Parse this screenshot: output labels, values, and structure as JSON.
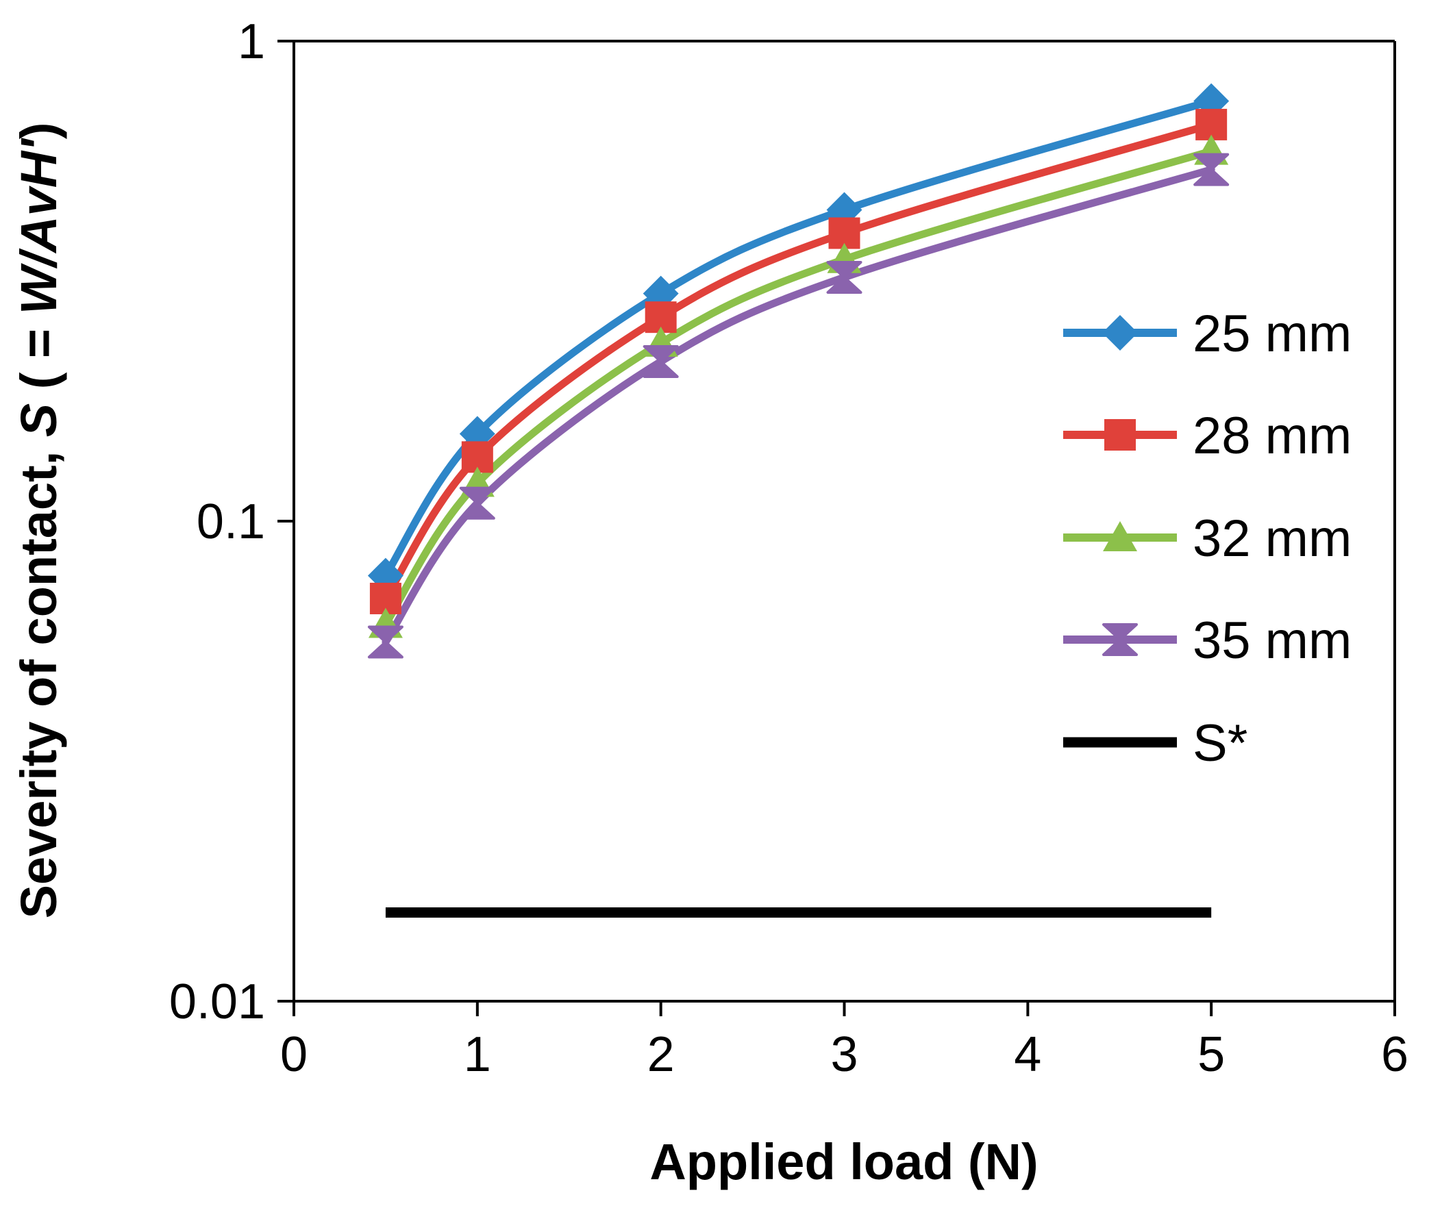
{
  "chart_data": {
    "type": "line",
    "title": "",
    "xlabel": "Applied load (N)",
    "ylabel_parts": [
      "Severity of contact, ",
      "S",
      " ( = ",
      "W/AvH'",
      ")"
    ],
    "xlim": [
      0,
      6
    ],
    "ylim": [
      0.01,
      1
    ],
    "yscale": "log",
    "xticks": [
      0,
      1,
      2,
      3,
      4,
      5,
      6
    ],
    "xtick_labels": [
      "0",
      "1",
      "2",
      "3",
      "4",
      "5",
      "6"
    ],
    "yticks": [
      0.01,
      0.1,
      1
    ],
    "ytick_labels": [
      "0.01",
      "0.1",
      "1"
    ],
    "grid": false,
    "legend_position": "right",
    "x": [
      0.5,
      1,
      2,
      3,
      5
    ],
    "series": [
      {
        "name": "25 mm",
        "color": "#2e86c8",
        "marker": "diamond",
        "values": [
          0.077,
          0.152,
          0.298,
          0.445,
          0.75
        ]
      },
      {
        "name": "28 mm",
        "color": "#e0413a",
        "marker": "square",
        "values": [
          0.069,
          0.136,
          0.266,
          0.398,
          0.67
        ]
      },
      {
        "name": "32 mm",
        "color": "#8cc04a",
        "marker": "triangle",
        "values": [
          0.061,
          0.12,
          0.235,
          0.351,
          0.59
        ]
      },
      {
        "name": "35 mm",
        "color": "#8a63ad",
        "marker": "star",
        "values": [
          0.056,
          0.109,
          0.215,
          0.322,
          0.54
        ]
      }
    ],
    "reference_line": {
      "name": "S*",
      "color": "#000000",
      "x": [
        0.5,
        5
      ],
      "value": 0.0153
    }
  }
}
